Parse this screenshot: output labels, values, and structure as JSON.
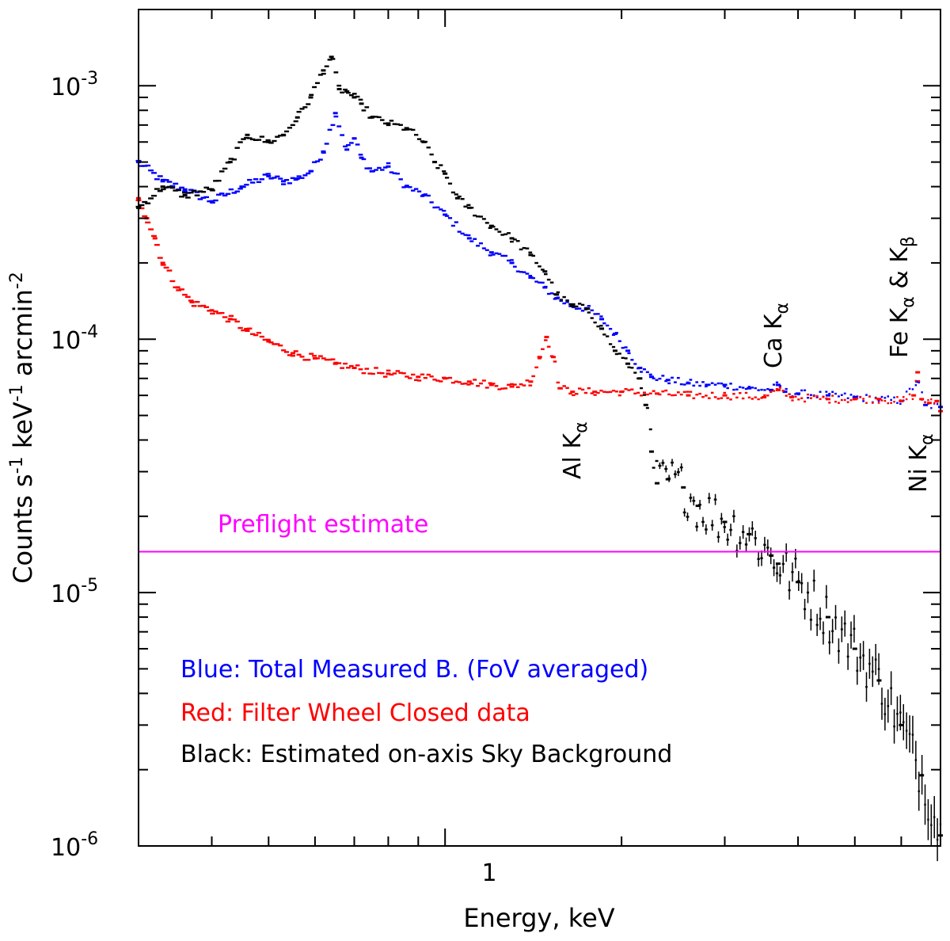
{
  "chart_data": {
    "type": "scatter",
    "xlabel": "Energy, keV",
    "ylabel_parts": {
      "a": "Counts s",
      "b": "-1",
      "c": " keV",
      "d": "-1",
      "e": " arcmin",
      "f": "-2"
    },
    "xscale": "log",
    "yscale": "log",
    "xlim": [
      0.3,
      7.0
    ],
    "ylim": [
      1e-06,
      0.002
    ],
    "x_tick_labels": [
      {
        "value": 1,
        "label": "1"
      }
    ],
    "y_tick_labels": [
      {
        "value": 0.001,
        "base": "10",
        "exp": "-3"
      },
      {
        "value": 0.0001,
        "base": "10",
        "exp": "-4"
      },
      {
        "value": 1e-05,
        "base": "10",
        "exp": "-5"
      },
      {
        "value": 1e-06,
        "base": "10",
        "exp": "-6"
      }
    ],
    "reference_line": {
      "label": "Preflight estimate",
      "y": 1.45e-05,
      "color": "#ff00ff"
    },
    "annotations": [
      {
        "base": "Al K",
        "sub": "α",
        "energy": 1.49
      },
      {
        "base": "Ca K",
        "sub": "α",
        "energy": 3.69
      },
      {
        "base": "Fe K",
        "sub": "α",
        "mid": " & K",
        "sub2": "β",
        "energy": 6.4
      },
      {
        "base": "Ni K",
        "sub": "α",
        "energy": 7.47
      }
    ],
    "legend": [
      {
        "text": "Blue: Total Measured B. (FoV averaged)",
        "color": "#0000ff"
      },
      {
        "text": "Red: Filter Wheel Closed data",
        "color": "#ff0000"
      },
      {
        "text": "Black: Estimated on-axis Sky Background",
        "color": "#000000"
      }
    ],
    "series": [
      {
        "name": "Total Measured B. (FoV averaged)",
        "color": "#0000ff",
        "x": [
          0.3,
          0.33,
          0.36,
          0.4,
          0.45,
          0.5,
          0.53,
          0.56,
          0.59,
          0.62,
          0.65,
          0.68,
          0.7,
          0.72,
          0.75,
          0.8,
          0.86,
          0.92,
          1.0,
          1.1,
          1.2,
          1.3,
          1.4,
          1.48,
          1.55,
          1.65,
          1.75,
          1.85,
          1.95,
          2.05,
          2.15,
          2.25,
          2.4,
          2.6,
          2.8,
          3.0,
          3.3,
          3.6,
          3.7,
          3.8,
          4.0,
          4.5,
          5.0,
          5.5,
          6.0,
          6.4,
          6.6,
          7.0
        ],
        "y": [
          0.0005,
          0.00042,
          0.00039,
          0.00035,
          0.0004,
          0.00044,
          0.00042,
          0.00043,
          0.00046,
          0.00055,
          0.00078,
          0.00056,
          0.00062,
          0.00052,
          0.00046,
          0.00048,
          0.0004,
          0.00037,
          0.00031,
          0.00025,
          0.00022,
          0.0002,
          0.000175,
          0.00016,
          0.000145,
          0.000135,
          0.000132,
          0.00012,
          0.000105,
          9e-05,
          7.7e-05,
          7.1e-05,
          6.9e-05,
          6.7e-05,
          6.6e-05,
          6.6e-05,
          6.4e-05,
          6.3e-05,
          6.6e-05,
          6.2e-05,
          6.1e-05,
          6e-05,
          5.9e-05,
          5.8e-05,
          5.7e-05,
          6.8e-05,
          5.5e-05,
          5.4e-05
        ]
      },
      {
        "name": "Filter Wheel Closed data",
        "color": "#ff0000",
        "x": [
          0.3,
          0.31,
          0.32,
          0.33,
          0.35,
          0.37,
          0.4,
          0.43,
          0.46,
          0.5,
          0.55,
          0.6,
          0.65,
          0.7,
          0.8,
          0.9,
          1.0,
          1.1,
          1.2,
          1.3,
          1.4,
          1.45,
          1.49,
          1.53,
          1.57,
          1.65,
          1.8,
          2.0,
          2.3,
          2.6,
          3.0,
          3.5,
          3.7,
          3.9,
          4.5,
          5.0,
          5.5,
          6.0,
          6.3,
          6.4,
          6.5,
          6.7,
          6.9,
          7.0
        ],
        "y": [
          0.00036,
          0.0003,
          0.00025,
          0.0002,
          0.00016,
          0.00014,
          0.00013,
          0.00012,
          0.000108,
          9.8e-05,
          8.8e-05,
          8.4e-05,
          8e-05,
          7.7e-05,
          7.3e-05,
          7.1e-05,
          7e-05,
          6.8e-05,
          6.6e-05,
          6.5e-05,
          6.8e-05,
          8.5e-05,
          0.000102,
          8.5e-05,
          6.4e-05,
          6.2e-05,
          6.2e-05,
          6.2e-05,
          6.1e-05,
          6e-05,
          6e-05,
          5.9e-05,
          6.3e-05,
          5.9e-05,
          5.8e-05,
          5.8e-05,
          5.8e-05,
          5.7e-05,
          6e-05,
          7.4e-05,
          5.8e-05,
          5.6e-05,
          5.7e-05,
          5.2e-05
        ]
      },
      {
        "name": "Estimated on-axis Sky Background",
        "color": "#000000",
        "x": [
          0.3,
          0.33,
          0.36,
          0.4,
          0.43,
          0.46,
          0.5,
          0.53,
          0.56,
          0.59,
          0.62,
          0.64,
          0.66,
          0.68,
          0.7,
          0.72,
          0.75,
          0.8,
          0.86,
          0.92,
          0.96,
          1.0,
          1.05,
          1.1,
          1.2,
          1.3,
          1.4,
          1.48,
          1.55,
          1.65,
          1.75,
          1.85,
          1.95,
          2.05,
          2.15,
          2.2,
          2.25,
          2.3,
          2.4,
          2.55,
          2.7,
          3.0,
          3.3,
          3.6,
          3.7,
          4.0,
          4.5,
          5.0,
          5.5,
          6.0,
          6.5,
          7.0
        ],
        "y": [
          0.00033,
          0.0004,
          0.00037,
          0.00039,
          0.0005,
          0.00064,
          0.0006,
          0.00064,
          0.00075,
          0.0009,
          0.00115,
          0.0013,
          0.00097,
          0.00095,
          0.0009,
          0.00085,
          0.00075,
          0.00071,
          0.00068,
          0.0006,
          0.0005,
          0.00045,
          0.00036,
          0.00033,
          0.00028,
          0.00025,
          0.000215,
          0.000185,
          0.00015,
          0.000135,
          0.000132,
          0.00011,
          9e-05,
          8e-05,
          7e-05,
          5.5e-05,
          3.6e-05,
          2.7e-05,
          2.8e-05,
          2.6e-05,
          2.2e-05,
          1.9e-05,
          1.7e-05,
          1.4e-05,
          1.3e-05,
          1.1e-05,
          8e-06,
          6e-06,
          4.5e-06,
          3e-06,
          1.9e-06,
          1.1e-06
        ]
      }
    ]
  }
}
